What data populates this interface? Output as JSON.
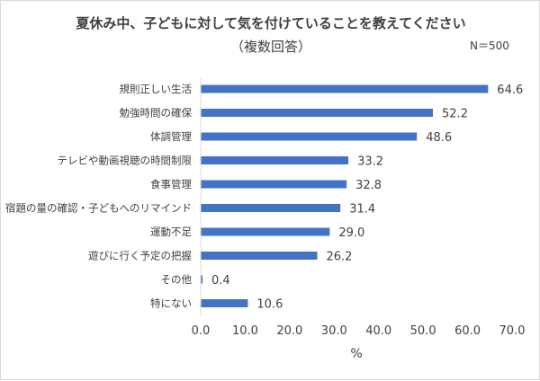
{
  "chart_data": {
    "type": "bar",
    "orientation": "horizontal",
    "title": "夏休み中、子どもに対して気を付けていることを教えてください",
    "subtitle": "（複数回答）",
    "sample_size": "N＝500",
    "xlabel": "%",
    "ylabel": "",
    "xlim": [
      0,
      70
    ],
    "x_ticks": [
      "0.0",
      "10.0",
      "20.0",
      "30.0",
      "40.0",
      "50.0",
      "60.0",
      "70.0"
    ],
    "grid": false,
    "legend": "none",
    "bar_color": "#4472C4",
    "categories": [
      "規則正しい生活",
      "勉強時間の確保",
      "体調管理",
      "テレビや動画視聴の時間制限",
      "食事管理",
      "宿題の量の確認・子どもへのリマインド",
      "運動不足",
      "遊びに行く予定の把握",
      "その他",
      "特にない"
    ],
    "values": [
      64.6,
      52.2,
      48.6,
      33.2,
      32.8,
      31.4,
      29.0,
      26.2,
      0.4,
      10.6
    ],
    "value_labels": [
      "64.6",
      "52.2",
      "48.6",
      "33.2",
      "32.8",
      "31.4",
      "29.0",
      "26.2",
      "0.4",
      "10.6"
    ]
  }
}
